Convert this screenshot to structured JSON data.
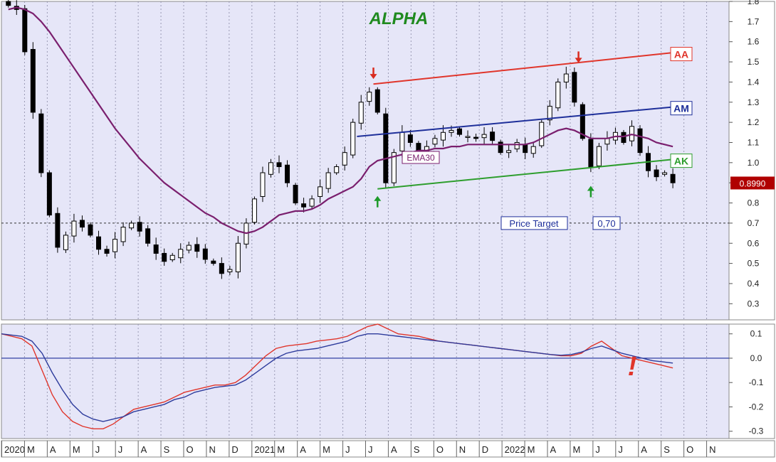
{
  "colors": {
    "panel_bg": "#E6E6F8",
    "axis_bg": "#FFFFFF",
    "title": "#1F8A1F",
    "aa": "#E0352B",
    "am": "#1E2F9A",
    "ak": "#2E9E2E",
    "ema": "#7A1F6E",
    "macd_red": "#E0352B",
    "macd_blue": "#2D3B9C",
    "up_arrow": "#1E9A2A",
    "down_arrow": "#D92B1F",
    "price_box": "#B00000"
  },
  "chart_data": [
    {
      "type": "candlestick",
      "title": "ALPHA",
      "ylim": [
        0.22,
        1.8
      ],
      "y_ticks": [
        "0.3",
        "0.4",
        "0.5",
        "0.6",
        "0.7",
        "0.8",
        "0.9",
        "1.0",
        "1.1",
        "1.2",
        "1.3",
        "1.4",
        "1.5",
        "1.6",
        "1.7",
        "1.8"
      ],
      "x_ticks": [
        "2020",
        "M",
        "A",
        "M",
        "J",
        "J",
        "A",
        "S",
        "O",
        "N",
        "D",
        "2021",
        "M",
        "A",
        "M",
        "J",
        "J",
        "A",
        "S",
        "O",
        "N",
        "D",
        "2022",
        "M",
        "A",
        "M",
        "J",
        "J",
        "A",
        "S",
        "O",
        "N"
      ],
      "last_price_label": "0.8990",
      "price_series": [
        1.78,
        1.76,
        1.55,
        1.25,
        0.95,
        0.74,
        0.58,
        0.64,
        0.71,
        0.68,
        0.64,
        0.57,
        0.55,
        0.62,
        0.68,
        0.7,
        0.66,
        0.6,
        0.55,
        0.51,
        0.54,
        0.57,
        0.59,
        0.56,
        0.52,
        0.5,
        0.45,
        0.47,
        0.6,
        0.7,
        0.82,
        0.95,
        1.0,
        0.98,
        0.9,
        0.8,
        0.78,
        0.82,
        0.88,
        0.95,
        0.98,
        1.05,
        1.2,
        1.3,
        1.35,
        1.25,
        0.9,
        1.05,
        1.15,
        1.1,
        1.05,
        1.08,
        1.12,
        1.15,
        1.16,
        1.14,
        1.13,
        1.12,
        1.14,
        1.11,
        1.05,
        1.06,
        1.1,
        1.05,
        1.08,
        1.2,
        1.28,
        1.4,
        1.44,
        1.3,
        1.12,
        0.98,
        1.08,
        1.12,
        1.15,
        1.1,
        1.18,
        1.05,
        0.96,
        0.93,
        0.95,
        0.9
      ],
      "ema30": [
        1.76,
        1.77,
        1.76,
        1.74,
        1.7,
        1.65,
        1.59,
        1.53,
        1.47,
        1.41,
        1.35,
        1.29,
        1.23,
        1.17,
        1.12,
        1.07,
        1.02,
        0.98,
        0.94,
        0.9,
        0.87,
        0.84,
        0.81,
        0.78,
        0.75,
        0.73,
        0.7,
        0.68,
        0.66,
        0.65,
        0.66,
        0.68,
        0.71,
        0.74,
        0.75,
        0.76,
        0.76,
        0.77,
        0.79,
        0.82,
        0.84,
        0.86,
        0.88,
        0.92,
        0.98,
        1.01,
        1.02,
        1.03,
        1.04,
        1.05,
        1.06,
        1.06,
        1.07,
        1.07,
        1.08,
        1.08,
        1.09,
        1.09,
        1.09,
        1.09,
        1.09,
        1.09,
        1.09,
        1.09,
        1.1,
        1.12,
        1.14,
        1.16,
        1.17,
        1.16,
        1.14,
        1.12,
        1.12,
        1.12,
        1.13,
        1.13,
        1.14,
        1.13,
        1.12,
        1.1,
        1.09,
        1.08
      ],
      "ema_label": "EMA30",
      "trend_lines": [
        {
          "label": "AA",
          "start": [
            44.5,
            1.39
          ],
          "end": [
            82,
            1.55
          ]
        },
        {
          "label": "AM",
          "start": [
            42.5,
            1.13
          ],
          "end": [
            82,
            1.28
          ]
        },
        {
          "label": "AK",
          "start": [
            45,
            0.87
          ],
          "end": [
            82,
            1.02
          ]
        }
      ],
      "arrows": [
        {
          "direction": "down",
          "at": [
            44.5,
            1.44
          ]
        },
        {
          "direction": "down",
          "at": [
            69.5,
            1.52
          ]
        },
        {
          "direction": "up",
          "at": [
            45,
            0.81
          ]
        },
        {
          "direction": "up",
          "at": [
            71,
            0.86
          ]
        }
      ],
      "target": {
        "value": 0.7,
        "label": "Price Target",
        "value_label": "0,70"
      }
    },
    {
      "type": "line",
      "ylim": [
        -0.33,
        0.14
      ],
      "y_ticks": [
        "0.1",
        "0.0",
        "-0.1",
        "-0.2",
        "-0.3"
      ],
      "series": [
        {
          "color": "red",
          "values": [
            0.1,
            0.09,
            0.08,
            0.05,
            -0.05,
            -0.15,
            -0.22,
            -0.26,
            -0.28,
            -0.29,
            -0.29,
            -0.27,
            -0.24,
            -0.21,
            -0.2,
            -0.19,
            -0.18,
            -0.16,
            -0.14,
            -0.13,
            -0.12,
            -0.11,
            -0.11,
            -0.1,
            -0.07,
            -0.03,
            0.01,
            0.04,
            0.05,
            0.055,
            0.06,
            0.07,
            0.075,
            0.08,
            0.09,
            0.11,
            0.13,
            0.14,
            0.12,
            0.1,
            0.095,
            0.09,
            0.08,
            0.07,
            0.065,
            0.06,
            0.055,
            0.05,
            0.045,
            0.04,
            0.035,
            0.03,
            0.025,
            0.02,
            0.015,
            0.01,
            0.01,
            0.02,
            0.05,
            0.07,
            0.04,
            0.01,
            0.0,
            -0.01,
            -0.02,
            -0.03,
            -0.04
          ]
        },
        {
          "color": "blue",
          "values": [
            0.1,
            0.095,
            0.09,
            0.07,
            0.02,
            -0.06,
            -0.13,
            -0.19,
            -0.23,
            -0.25,
            -0.26,
            -0.25,
            -0.24,
            -0.22,
            -0.21,
            -0.2,
            -0.19,
            -0.17,
            -0.16,
            -0.14,
            -0.13,
            -0.12,
            -0.115,
            -0.11,
            -0.09,
            -0.06,
            -0.03,
            0.0,
            0.02,
            0.03,
            0.035,
            0.04,
            0.05,
            0.06,
            0.07,
            0.09,
            0.1,
            0.1,
            0.095,
            0.09,
            0.085,
            0.08,
            0.075,
            0.07,
            0.065,
            0.06,
            0.055,
            0.05,
            0.045,
            0.04,
            0.035,
            0.03,
            0.025,
            0.02,
            0.015,
            0.012,
            0.015,
            0.025,
            0.04,
            0.05,
            0.035,
            0.02,
            0.01,
            0.0,
            -0.01,
            -0.015,
            -0.02
          ]
        }
      ],
      "signal_mark": "!"
    }
  ]
}
